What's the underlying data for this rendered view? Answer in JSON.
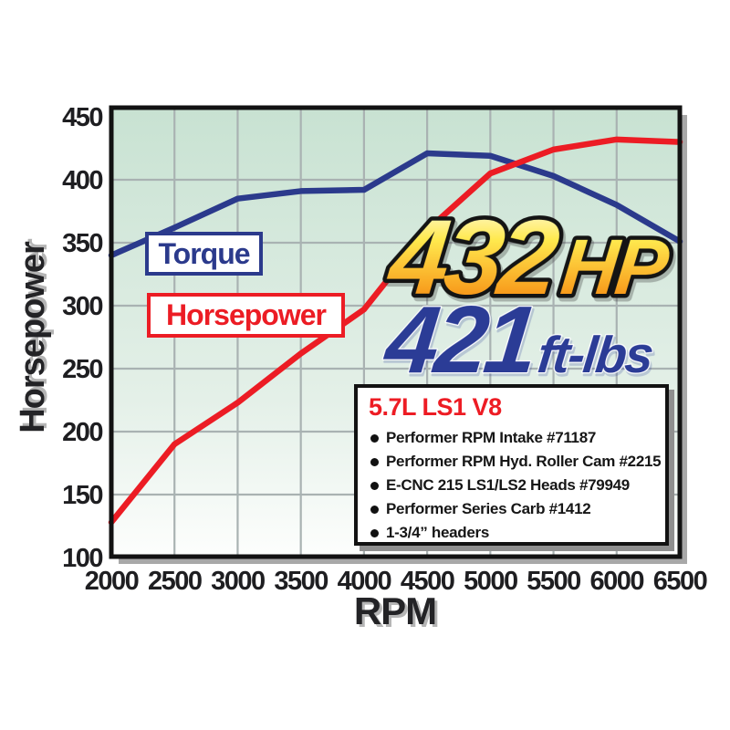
{
  "chart_data": {
    "type": "line",
    "xlabel": "RPM",
    "ylabel": "Horsepower",
    "x": [
      2000,
      2500,
      3000,
      3500,
      4000,
      4500,
      5000,
      5500,
      6000,
      6500
    ],
    "xticks": [
      2000,
      2500,
      3000,
      3500,
      4000,
      4500,
      5000,
      5500,
      6000,
      6500
    ],
    "yticks": [
      450,
      400,
      350,
      300,
      250,
      200,
      150,
      100
    ],
    "xlim": [
      2000,
      6500
    ],
    "ylim": [
      100,
      457
    ],
    "grid": true,
    "legend_position": "inside-left",
    "series": [
      {
        "name": "Torque",
        "color": "#2b3a8c",
        "values": [
          340,
          362,
          385,
          391,
          392,
          421,
          419,
          403,
          380,
          351
        ],
        "peak_label": "421 ft-lbs"
      },
      {
        "name": "Horsepower",
        "color": "#ec1c24",
        "values": [
          128,
          190,
          223,
          262,
          297,
          360,
          405,
          424,
          432,
          430
        ],
        "peak_label": "432 HP"
      }
    ]
  },
  "callouts": {
    "hp_value": "432",
    "hp_unit": "HP",
    "tq_value": "421",
    "tq_unit": "ft-lbs"
  },
  "spec_box": {
    "title": "5.7L LS1 V8",
    "items": [
      "Performer RPM Intake #71187",
      "Performer RPM Hyd. Roller Cam #2215",
      "E-CNC 215 LS1/LS2 Heads #79949",
      "Performer Series Carb #1412",
      "1-3/4” headers"
    ]
  },
  "colors": {
    "torque_blue": "#2b3a8c",
    "horsepower_red": "#ec1c24",
    "plot_bg_top": "#c8e2d2",
    "plot_bg_mid": "#e4f0e8",
    "plot_bg_bottom": "#fdfefd",
    "grid": "#a9b2b2",
    "frame": "#121212",
    "frame_shadow": "#a8a8a8",
    "gold_top": "#fffdf2",
    "gold_mid": "#ffe94e",
    "gold_low": "#f89c1c",
    "gold_bottom": "#f4791f",
    "callout_blue": "#2b3c96",
    "spec_title_red": "#ed1c24"
  }
}
